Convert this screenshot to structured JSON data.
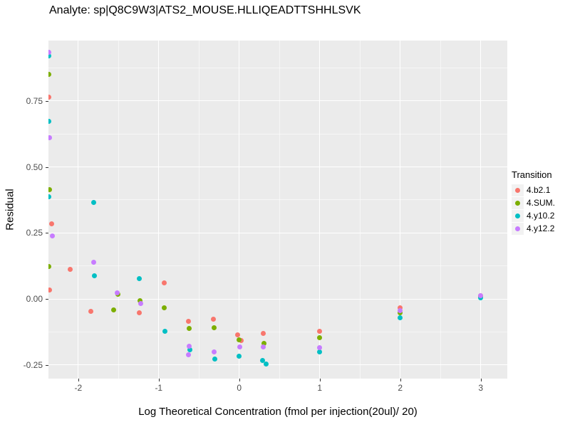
{
  "title": "Analyte: sp|Q8C9W3|ATS2_MOUSE.HLLIQEADTTSHHLSVK",
  "chart_data": {
    "type": "scatter",
    "title": "Analyte: sp|Q8C9W3|ATS2_MOUSE.HLLIQEADTTSHHLSVK",
    "xlabel": "Log Theoretical Concentration (fmol per injection(20ul)/ 20)",
    "ylabel": "Residual",
    "xlim": [
      -2.37,
      3.33
    ],
    "ylim": [
      -0.302,
      0.979
    ],
    "grid": true,
    "panel_bg": "#EBEBEB",
    "x_ticks": [
      -2,
      -1,
      0,
      1,
      2,
      3
    ],
    "x_tick_labels": [
      "-2",
      "-1",
      "0",
      "1",
      "2",
      "3"
    ],
    "y_ticks": [
      -0.25,
      0.0,
      0.25,
      0.5,
      0.75
    ],
    "y_tick_labels": [
      "-0.25",
      "0.00",
      "0.25",
      "0.50",
      "0.75"
    ],
    "x_minor": [
      -1.5,
      -0.5,
      0.5,
      1.5,
      2.5
    ],
    "y_minor": [
      -0.125,
      0.125,
      0.375,
      0.625,
      0.875
    ],
    "legend_title": "Transition",
    "legend_position": "right",
    "series": [
      {
        "name": "4.b2.1",
        "color": "#F8766D",
        "points": [
          [
            -2.37,
            0.765
          ],
          [
            -2.33,
            0.285
          ],
          [
            -2.36,
            0.035
          ],
          [
            -2.1,
            0.112
          ],
          [
            -1.84,
            -0.048
          ],
          [
            -1.24,
            -0.052
          ],
          [
            -0.93,
            0.062
          ],
          [
            -0.63,
            -0.085
          ],
          [
            -0.32,
            -0.078
          ],
          [
            -0.02,
            -0.135
          ],
          [
            0.02,
            -0.158
          ],
          [
            0.3,
            -0.132
          ],
          [
            1.0,
            -0.122
          ],
          [
            2.0,
            -0.033
          ],
          [
            3.0,
            0.012
          ]
        ]
      },
      {
        "name": "4.SUM.",
        "color": "#7CAE00",
        "points": [
          [
            -2.37,
            0.85
          ],
          [
            -2.36,
            0.415
          ],
          [
            -2.37,
            0.122
          ],
          [
            -1.56,
            -0.042
          ],
          [
            -1.51,
            0.018
          ],
          [
            -1.23,
            -0.008
          ],
          [
            -0.93,
            -0.035
          ],
          [
            -0.62,
            -0.112
          ],
          [
            -0.31,
            -0.108
          ],
          [
            0.0,
            -0.155
          ],
          [
            0.31,
            -0.168
          ],
          [
            1.0,
            -0.148
          ],
          [
            2.0,
            -0.052
          ],
          [
            3.0,
            0.01
          ]
        ]
      },
      {
        "name": "4.y10.2",
        "color": "#00BFC4",
        "points": [
          [
            -2.37,
            0.92
          ],
          [
            -2.37,
            0.672
          ],
          [
            -2.37,
            0.388
          ],
          [
            -1.81,
            0.365
          ],
          [
            -1.8,
            0.088
          ],
          [
            -1.24,
            0.078
          ],
          [
            -0.92,
            -0.123
          ],
          [
            -0.61,
            -0.192
          ],
          [
            -0.3,
            -0.228
          ],
          [
            0.0,
            -0.218
          ],
          [
            0.29,
            -0.232
          ],
          [
            0.33,
            -0.248
          ],
          [
            1.0,
            -0.202
          ],
          [
            2.0,
            -0.072
          ],
          [
            3.0,
            0.005
          ]
        ]
      },
      {
        "name": "4.y12.2",
        "color": "#C77CFF",
        "points": [
          [
            -2.37,
            0.935
          ],
          [
            -2.36,
            0.612
          ],
          [
            -2.32,
            0.238
          ],
          [
            -1.81,
            0.138
          ],
          [
            -1.52,
            0.022
          ],
          [
            -1.22,
            -0.018
          ],
          [
            -0.62,
            -0.178
          ],
          [
            -0.63,
            -0.212
          ],
          [
            -0.31,
            -0.202
          ],
          [
            0.01,
            -0.182
          ],
          [
            0.3,
            -0.182
          ],
          [
            1.0,
            -0.185
          ],
          [
            2.0,
            -0.045
          ],
          [
            3.0,
            0.012
          ]
        ]
      }
    ]
  }
}
